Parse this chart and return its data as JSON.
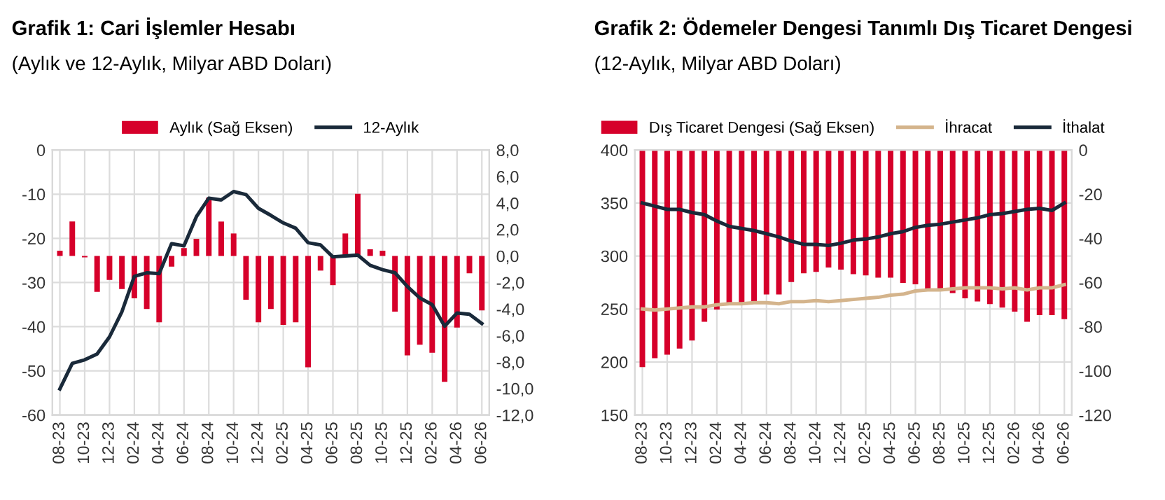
{
  "chart_data": [
    {
      "type": "bar",
      "title": "Grafik 1: Cari İşlemler Hesabı",
      "subtitle": "(Aylık ve 12-Aylık, Milyar ABD Doları)",
      "categories": [
        "08-23",
        null,
        "10-23",
        null,
        "12-23",
        null,
        "02-24",
        null,
        "04-24",
        null,
        "06-24",
        null,
        "08-24",
        null,
        "10-24",
        null,
        "12-24",
        null,
        "02-25",
        null,
        "04-25",
        null,
        "06-25",
        null,
        "08-25",
        null,
        "10-25",
        null,
        "12-25",
        null,
        "02-26",
        null,
        "04-26",
        null,
        "06-26"
      ],
      "series": [
        {
          "name": "Aylık (Sağ Eksen)",
          "axis": "y2",
          "color": "#d6002a",
          "values": [
            0.4,
            2.6,
            -0.1,
            -2.7,
            -1.8,
            -2.5,
            -3.2,
            -4.0,
            -5.0,
            -0.8,
            0.6,
            1.3,
            4.4,
            2.6,
            1.7,
            -3.3,
            -5.0,
            -4.0,
            -5.2,
            -5.0,
            -8.4,
            -1.1,
            -2.2,
            1.7,
            4.7,
            0.5,
            0.4,
            -4.2,
            -7.5,
            -6.7,
            -7.3,
            -9.5,
            -5.4,
            -1.3,
            -4.1
          ]
        },
        {
          "name": "12-Aylık",
          "type": "line",
          "color": "#1a2a3a",
          "values": [
            -54.1,
            -48.3,
            -47.5,
            -46.2,
            -42.3,
            -36.6,
            -28.6,
            -27.8,
            -28.0,
            -21.2,
            -21.7,
            -15.1,
            -10.9,
            -11.3,
            -9.4,
            -10.1,
            -13.2,
            -14.8,
            -16.5,
            -17.7,
            -21.0,
            -21.5,
            -24.2,
            -24.0,
            -23.8,
            -26.1,
            -27.1,
            -27.8,
            -30.9,
            -33.5,
            -35.0,
            -39.9,
            -36.9,
            -37.2,
            -39.3
          ]
        }
      ],
      "ylim": [
        -60,
        0
      ],
      "yticks": [
        -60,
        -50,
        -40,
        -30,
        -20,
        -10,
        0
      ],
      "y2lim": [
        -12,
        8
      ],
      "y2ticks": [
        {
          "value": -12,
          "label": "-12,0"
        },
        {
          "value": -10,
          "label": "-10,0"
        },
        {
          "value": -8,
          "label": "-8,0"
        },
        {
          "value": -6,
          "label": "-6,0"
        },
        {
          "value": -4,
          "label": "-4,0"
        },
        {
          "value": -2,
          "label": "-2,0"
        },
        {
          "value": 0,
          "label": "0,0"
        },
        {
          "value": 2,
          "label": "2,0"
        },
        {
          "value": 4,
          "label": "4,0"
        },
        {
          "value": 6,
          "label": "6,0"
        },
        {
          "value": 8,
          "label": "8,0"
        }
      ],
      "grid": true,
      "legend": "top",
      "marker": "none",
      "line_style": "solid"
    },
    {
      "type": "bar",
      "title": "Grafik 2: Ödemeler Dengesi Tanımlı Dış Ticaret Dengesi",
      "subtitle": "(12-Aylık, Milyar ABD Doları)",
      "categories": [
        "08-23",
        null,
        "10-23",
        null,
        "12-23",
        null,
        "02-24",
        null,
        "04-24",
        null,
        "06-24",
        null,
        "08-24",
        null,
        "10-24",
        null,
        "12-24",
        null,
        "02-25",
        null,
        "04-25",
        null,
        "06-25",
        null,
        "08-25",
        null,
        "10-25",
        null,
        "12-25",
        null,
        "02-26",
        null,
        "04-26",
        null,
        "06-26"
      ],
      "series": [
        {
          "name": "Dış Ticaret Dengesi (Sağ Eksen)",
          "axis": "y2",
          "color": "#d6002a",
          "values": [
            -98.3,
            -94.3,
            -92.7,
            -89.9,
            -86.3,
            -77.8,
            -72.2,
            -70.0,
            -69.8,
            -69.2,
            -65.4,
            -65.4,
            -59.8,
            -55.8,
            -55.2,
            -53.2,
            -54.2,
            -56.2,
            -56.8,
            -57.8,
            -57.8,
            -60.2,
            -60.8,
            -63.2,
            -62.8,
            -64.8,
            -67.2,
            -68.6,
            -69.8,
            -71.4,
            -73.2,
            -77.8,
            -74.8,
            -74.8,
            -76.6
          ]
        },
        {
          "name": "İhracat",
          "type": "line",
          "color": "#d4b48c",
          "values": [
            250,
            249,
            250,
            251,
            252,
            252,
            254,
            255,
            255,
            256,
            256,
            255,
            257,
            257,
            258,
            257,
            258,
            259,
            260,
            261,
            263,
            264,
            267,
            268,
            268,
            269,
            270,
            270,
            270,
            269,
            270,
            268,
            270,
            270,
            273
          ]
        },
        {
          "name": "İthalat",
          "type": "line",
          "color": "#1a2a3a",
          "values": [
            350,
            347,
            344,
            344,
            341,
            339,
            333,
            328,
            326,
            324,
            321,
            318,
            314,
            311,
            311,
            310,
            312,
            315,
            316,
            318,
            321,
            323,
            327,
            329,
            330,
            332,
            334,
            336,
            339,
            340,
            342,
            344,
            345,
            343,
            350
          ]
        }
      ],
      "ylim": [
        150,
        400
      ],
      "yticks": [
        150,
        200,
        250,
        300,
        350,
        400
      ],
      "y2lim": [
        -120,
        0
      ],
      "y2ticks": [
        -120,
        -100,
        -80,
        -60,
        -40,
        -20,
        0
      ],
      "grid": true,
      "legend": "top",
      "marker": "none",
      "line_style": "solid"
    }
  ]
}
